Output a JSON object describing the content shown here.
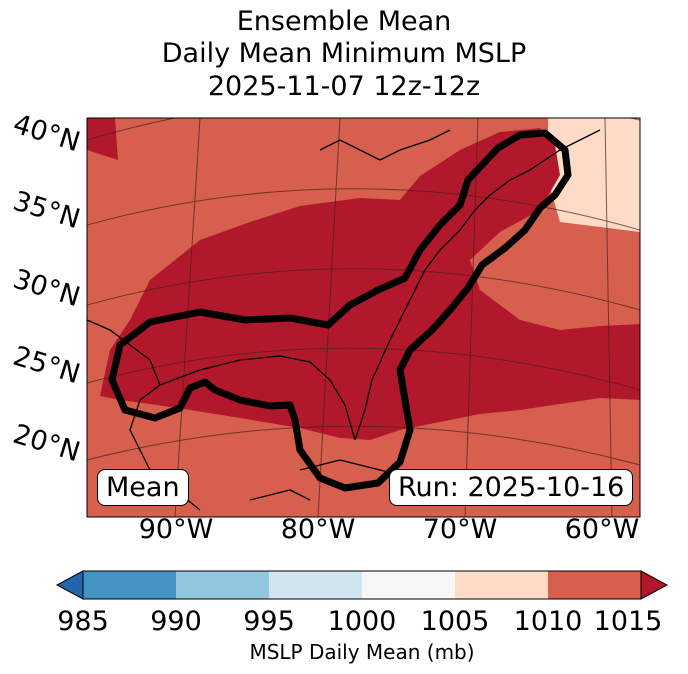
{
  "title": {
    "line1": "Ensemble Mean",
    "line2": "Daily Mean Minimum MSLP",
    "line3": "2025-11-07 12z-12z"
  },
  "map": {
    "lat_labels": [
      "40°N",
      "35°N",
      "30°N",
      "25°N",
      "20°N"
    ],
    "lon_labels": [
      "90°W",
      "80°W",
      "70°W",
      "60°W"
    ],
    "mean_box": "Mean",
    "run_box": "Run: 2025-10-16",
    "fill_colors": {
      "below_1010": "#b2182b",
      "1010_1015": "#d6604d",
      "1005_1010": "#fddbc7"
    },
    "contour_color": "#000000"
  },
  "colorbar": {
    "ticks": [
      "985",
      "990",
      "995",
      "1000",
      "1005",
      "1010",
      "1015"
    ],
    "label": "MSLP Daily Mean (mb)",
    "colors": [
      "#2166ac",
      "#4393c3",
      "#92c5de",
      "#d1e5f0",
      "#f7f7f7",
      "#fddbc7",
      "#d6604d",
      "#b2182b"
    ]
  }
}
